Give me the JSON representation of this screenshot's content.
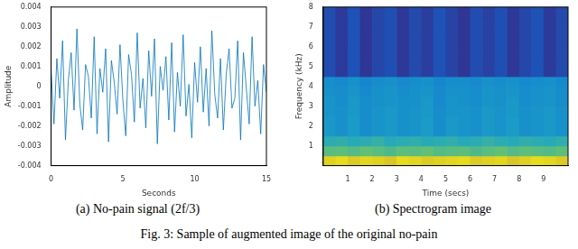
{
  "chart_data": [
    {
      "type": "line",
      "x_label": "Seconds",
      "y_label": "Amplitude",
      "color": "#0072bd",
      "grid": false,
      "xlim": [
        0,
        15
      ],
      "xticks": [
        0,
        5,
        10,
        15
      ],
      "ylim": [
        -0.004,
        0.004
      ],
      "yticks": [
        -0.004,
        -0.003,
        -0.002,
        -0.001,
        0,
        0.001,
        0.002,
        0.003,
        0.004
      ],
      "x": [
        0,
        0.2,
        0.4,
        0.6,
        0.8,
        1,
        1.2,
        1.4,
        1.6,
        1.8,
        2,
        2.2,
        2.4,
        2.6,
        2.8,
        3,
        3.2,
        3.4,
        3.6,
        3.8,
        4,
        4.2,
        4.4,
        4.6,
        4.8,
        5,
        5.2,
        5.4,
        5.6,
        5.8,
        6,
        6.2,
        6.4,
        6.6,
        6.8,
        7,
        7.2,
        7.4,
        7.6,
        7.8,
        8,
        8.2,
        8.4,
        8.6,
        8.8,
        9,
        9.2,
        9.4,
        9.6,
        9.8,
        10,
        10.2,
        10.4,
        10.6,
        10.8,
        11,
        11.2,
        11.4,
        11.6,
        11.8,
        12,
        12.2,
        12.4,
        12.6,
        12.8,
        13,
        13.2,
        13.4,
        13.6,
        13.8,
        14,
        14.2,
        14.4,
        14.6,
        14.8,
        15
      ],
      "values": [
        0.0008,
        -0.0019,
        0.0014,
        -0.0006,
        0.0023,
        -0.0027,
        0.0003,
        0.0017,
        -0.0012,
        0.0029,
        -0.0009,
        -0.0022,
        0.0011,
        0.0005,
        -0.0016,
        0.0025,
        -0.0024,
        0.0009,
        -0.0003,
        0.0019,
        -0.0028,
        0.0013,
        0.0002,
        -0.0014,
        0.0021,
        -0.0007,
        -0.0025,
        0.0016,
        0.0006,
        -0.0018,
        0.0027,
        -0.0011,
        0.0004,
        -0.0021,
        0.0018,
        -0.0005,
        0.0024,
        -0.0029,
        0.001,
        -0.0002,
        0.0015,
        -0.0017,
        0.0022,
        -0.0023,
        0.0007,
        -0.001,
        0.0026,
        -0.0015,
        0.0001,
        -0.0026,
        0.0012,
        -0.0008,
        0.002,
        -0.0013,
        0.0009,
        -0.002,
        0.0028,
        -0.0004,
        -0.0016,
        0.0014,
        -0.0022,
        0.0006,
        0.0019,
        -0.0011,
        -0.0006,
        0.0023,
        -0.0027,
        0.0017,
        -0.0001,
        -0.0019,
        0.0025,
        -0.001,
        0.0003,
        -0.0024,
        0.0011,
        -0.0003
      ]
    },
    {
      "type": "heatmap",
      "x_label": "Time (secs)",
      "y_label": "Frequency (kHz)",
      "grid": false,
      "xlim": [
        0,
        10
      ],
      "xticks": [
        1,
        2,
        3,
        4,
        5,
        6,
        7,
        8,
        9
      ],
      "ylim": [
        0,
        8
      ],
      "yticks": [
        1,
        2,
        3,
        4,
        5,
        6,
        7,
        8
      ],
      "x_bins": [
        0,
        0.5,
        1,
        1.5,
        2,
        2.5,
        3,
        3.5,
        4,
        4.5,
        5,
        5.5,
        6,
        6.5,
        7,
        7.5,
        8,
        8.5,
        9,
        9.5,
        10
      ],
      "y_bins": [
        0,
        0.5,
        1,
        1.5,
        2,
        2.5,
        3,
        3.5,
        4,
        4.5,
        5,
        5.5,
        6,
        6.5,
        7,
        7.5,
        8
      ],
      "color_range": [
        -140,
        -60
      ],
      "cells": [
        [
          -68,
          -66,
          -69,
          -67,
          -68,
          -70,
          -66,
          -67,
          -69,
          -68,
          -67,
          -66,
          -69,
          -68,
          -67,
          -70,
          -68,
          -66,
          -67,
          -69
        ],
        [
          -88,
          -87,
          -89,
          -86,
          -88,
          -90,
          -87,
          -88,
          -86,
          -89,
          -88,
          -87,
          -90,
          -88,
          -86,
          -89,
          -87,
          -88,
          -89,
          -87
        ],
        [
          -97,
          -96,
          -98,
          -97,
          -95,
          -98,
          -97,
          -96,
          -98,
          -97,
          -96,
          -98,
          -97,
          -95,
          -97,
          -98,
          -96,
          -97,
          -98,
          -96
        ],
        [
          -104,
          -106,
          -103,
          -107,
          -105,
          -104,
          -106,
          -105,
          -103,
          -107,
          -104,
          -105,
          -106,
          -104,
          -105,
          -103,
          -106,
          -105,
          -104,
          -106
        ],
        [
          -104,
          -106,
          -103,
          -107,
          -105,
          -104,
          -106,
          -105,
          -103,
          -107,
          -104,
          -105,
          -106,
          -104,
          -105,
          -103,
          -106,
          -105,
          -104,
          -106
        ],
        [
          -105,
          -106,
          -104,
          -107,
          -105,
          -104,
          -106,
          -105,
          -104,
          -107,
          -105,
          -105,
          -106,
          -104,
          -105,
          -104,
          -106,
          -105,
          -104,
          -106
        ],
        [
          -105,
          -107,
          -104,
          -107,
          -106,
          -105,
          -106,
          -106,
          -104,
          -108,
          -105,
          -106,
          -107,
          -105,
          -106,
          -104,
          -107,
          -106,
          -105,
          -107
        ],
        [
          -106,
          -107,
          -105,
          -108,
          -106,
          -105,
          -107,
          -106,
          -105,
          -108,
          -106,
          -106,
          -107,
          -105,
          -106,
          -105,
          -107,
          -106,
          -105,
          -107
        ],
        [
          -107,
          -108,
          -106,
          -109,
          -107,
          -106,
          -108,
          -107,
          -106,
          -109,
          -107,
          -107,
          -108,
          -106,
          -107,
          -106,
          -108,
          -107,
          -106,
          -108
        ],
        [
          -128,
          -134,
          -126,
          -136,
          -130,
          -127,
          -135,
          -129,
          -133,
          -126,
          -131,
          -136,
          -128,
          -132,
          -127,
          -135,
          -130,
          -126,
          -134,
          -129
        ],
        [
          -128,
          -134,
          -126,
          -136,
          -130,
          -127,
          -135,
          -129,
          -133,
          -126,
          -131,
          -136,
          -128,
          -132,
          -127,
          -135,
          -130,
          -126,
          -134,
          -129
        ],
        [
          -128,
          -134,
          -126,
          -136,
          -130,
          -127,
          -135,
          -129,
          -133,
          -126,
          -131,
          -136,
          -128,
          -132,
          -127,
          -135,
          -130,
          -126,
          -134,
          -129
        ],
        [
          -128,
          -134,
          -126,
          -136,
          -130,
          -127,
          -135,
          -129,
          -133,
          -126,
          -131,
          -136,
          -128,
          -132,
          -127,
          -135,
          -130,
          -126,
          -134,
          -129
        ],
        [
          -128,
          -134,
          -126,
          -136,
          -130,
          -127,
          -135,
          -129,
          -133,
          -126,
          -131,
          -136,
          -128,
          -132,
          -127,
          -135,
          -130,
          -126,
          -134,
          -129
        ],
        [
          -128,
          -134,
          -126,
          -136,
          -130,
          -127,
          -135,
          -129,
          -133,
          -126,
          -131,
          -136,
          -128,
          -132,
          -127,
          -135,
          -130,
          -126,
          -134,
          -129
        ],
        [
          -128,
          -134,
          -126,
          -136,
          -130,
          -127,
          -135,
          -129,
          -133,
          -126,
          -131,
          -136,
          -128,
          -132,
          -127,
          -135,
          -130,
          -126,
          -134,
          -129
        ]
      ]
    }
  ],
  "panel_captions": [
    "(a) No-pain signal (2f/3)",
    "(b) Spectrogram image"
  ],
  "figure_caption": "Fig. 3: Sample of augmented image of the original no-pain"
}
